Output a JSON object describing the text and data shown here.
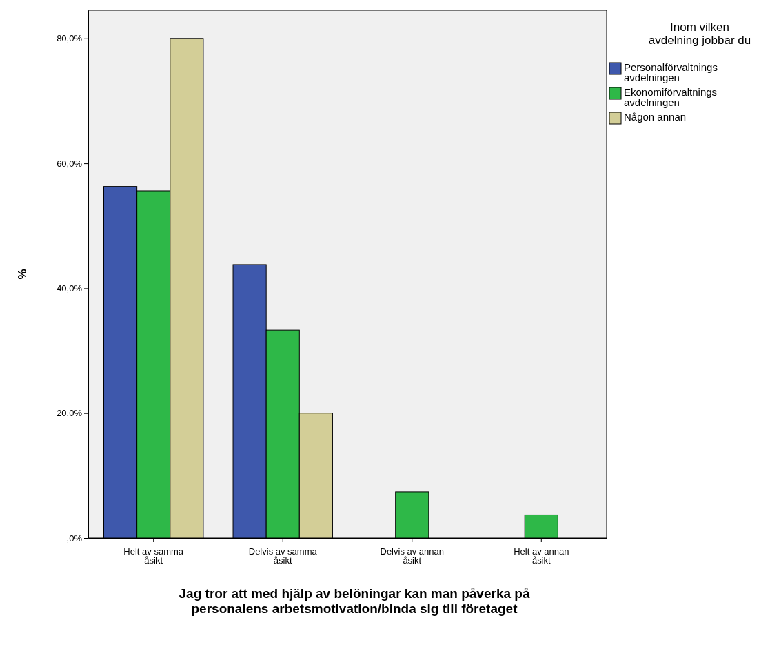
{
  "chart_data": {
    "type": "bar",
    "xlabel": "Jag tror att med hjälp av belöningar kan man påverka på personalens arbetsmotivation/binda sig till företaget",
    "ylabel": "%",
    "legend_title": "Inom vilken avdelning jobbar du",
    "categories": [
      "Helt av samma åsikt",
      "Delvis av samma åsikt",
      "Delvis av annan åsikt",
      "Helt av annan åsikt"
    ],
    "series": [
      {
        "name": "Personalförvaltnings avdelningen",
        "color": "#3e58ac",
        "values": [
          56.3,
          43.8,
          null,
          null
        ]
      },
      {
        "name": "Ekonomiförvaltnings avdelningen",
        "color": "#2eb848",
        "values": [
          55.6,
          33.3,
          7.4,
          3.7
        ]
      },
      {
        "name": "Någon annan",
        "color": "#d3ce97",
        "values": [
          80,
          20,
          null,
          null
        ]
      }
    ],
    "ylim": [
      0,
      84.5
    ],
    "yticks": [
      {
        "value": 0,
        "label": ",0%"
      },
      {
        "value": 20,
        "label": "20,0%"
      },
      {
        "value": 40,
        "label": "40,0%"
      },
      {
        "value": 60,
        "label": "60,0%"
      },
      {
        "value": 80,
        "label": "80,0%"
      }
    ],
    "legend": "right"
  }
}
